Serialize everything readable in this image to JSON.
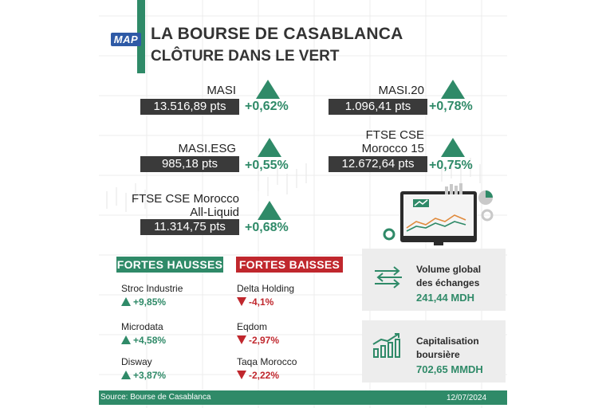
{
  "header": {
    "logo": "MAP",
    "title": "LA BOURSE DE CASABLANCA",
    "subtitle": "CLÔTURE DANS LE VERT"
  },
  "indices": [
    {
      "name": "MASI",
      "value": "13.516,89 pts",
      "change": "+0,62%"
    },
    {
      "name": "MASI.20",
      "value": "1.096,41 pts",
      "change": "+0,78%"
    },
    {
      "name": "MASI.ESG",
      "value": "985,18 pts",
      "change": "+0,55%"
    },
    {
      "name_line1": "FTSE CSE",
      "name_line2": "Morocco 15",
      "value": "12.672,64 pts",
      "change": "+0,75%"
    },
    {
      "name_line1": "FTSE CSE Morocco",
      "name_line2": "All-Liquid",
      "value": "11.314,75 pts",
      "change": "+0,68%"
    }
  ],
  "gainers": {
    "heading": "FORTES HAUSSES",
    "items": [
      {
        "name": "Stroc Industrie",
        "change": "+9,85%"
      },
      {
        "name": "Microdata",
        "change": "+4,58%"
      },
      {
        "name": "Disway",
        "change": "+3,87%"
      }
    ]
  },
  "losers": {
    "heading": "FORTES BAISSES",
    "items": [
      {
        "name": "Delta Holding",
        "change": "-4,1%"
      },
      {
        "name": "Eqdom",
        "change": "-2,97%"
      },
      {
        "name": "Taqa Morocco",
        "change": "-2,22%"
      }
    ]
  },
  "volume": {
    "label_line1": "Volume global",
    "label_line2": "des échanges",
    "value": "241,44 MDH"
  },
  "capitalisation": {
    "label_line1": "Capitalisation",
    "label_line2": "boursière",
    "value": "702,65 MMDH"
  },
  "footer": {
    "source": "Source: Bourse de Casablanca",
    "date": "12/07/2024"
  },
  "colors": {
    "green": "#2f8a68",
    "red": "#c0272d",
    "dark": "#3a3a3a",
    "panel": "#ededed"
  },
  "icons": [
    "up-triangle-icon",
    "down-triangle-icon",
    "transfer-arrows-icon",
    "growth-chart-icon",
    "monitor-dashboard-icon"
  ]
}
